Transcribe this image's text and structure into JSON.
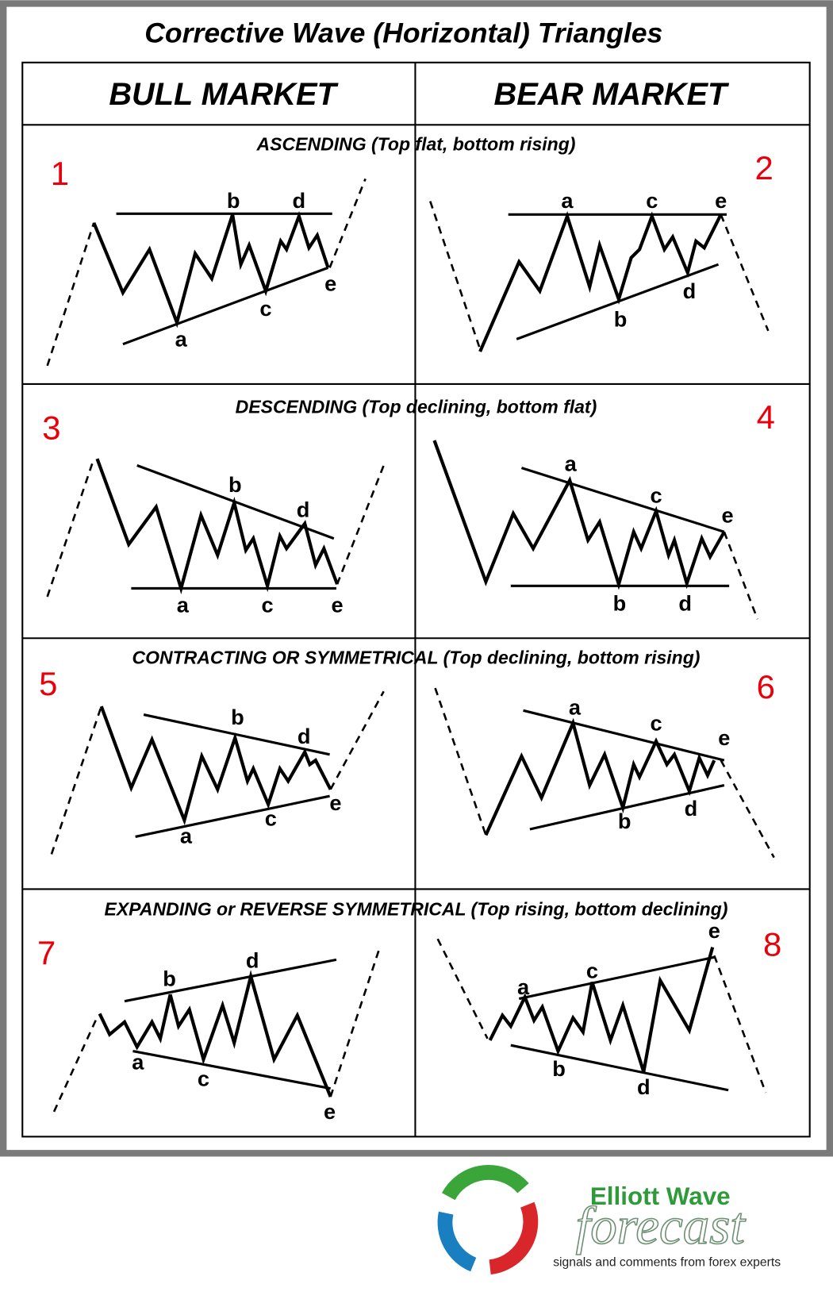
{
  "title": "Corrective Wave (Horizontal) Triangles",
  "columns": [
    "BULL MARKET",
    "BEAR MARKET"
  ],
  "sections": [
    {
      "heading": "ASCENDING (Top flat, bottom rising)",
      "panels": [
        {
          "number": "1",
          "labels": [
            "a",
            "b",
            "c",
            "d",
            "e"
          ]
        },
        {
          "number": "2",
          "labels": [
            "a",
            "b",
            "c",
            "d",
            "e"
          ]
        }
      ]
    },
    {
      "heading": "DESCENDING (Top declining, bottom flat)",
      "panels": [
        {
          "number": "3",
          "labels": [
            "a",
            "b",
            "c",
            "d",
            "e"
          ]
        },
        {
          "number": "4",
          "labels": [
            "a",
            "b",
            "c",
            "d",
            "e"
          ]
        }
      ]
    },
    {
      "heading": "CONTRACTING OR SYMMETRICAL (Top declining, bottom rising)",
      "panels": [
        {
          "number": "5",
          "labels": [
            "a",
            "b",
            "c",
            "d",
            "e"
          ]
        },
        {
          "number": "6",
          "labels": [
            "a",
            "b",
            "c",
            "d",
            "e"
          ]
        }
      ]
    },
    {
      "heading": "EXPANDING or REVERSE SYMMETRICAL (Top rising, bottom declining)",
      "panels": [
        {
          "number": "7",
          "labels": [
            "a",
            "b",
            "c",
            "d",
            "e"
          ]
        },
        {
          "number": "8",
          "labels": [
            "a",
            "b",
            "c",
            "d",
            "e"
          ]
        }
      ]
    }
  ],
  "logo": {
    "brand": "Elliott Wave",
    "word": "forecast",
    "tagline": "signals and comments from forex experts"
  }
}
